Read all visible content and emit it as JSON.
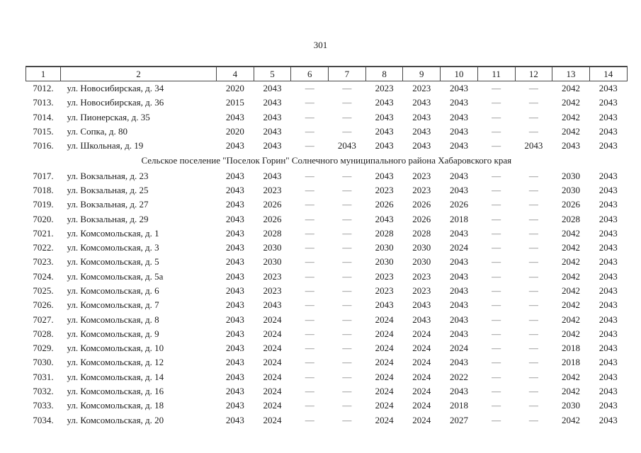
{
  "page_number": "301",
  "table": {
    "columns": [
      "1",
      "2",
      "4",
      "5",
      "6",
      "7",
      "8",
      "9",
      "10",
      "11",
      "12",
      "13",
      "14"
    ],
    "dash": "—",
    "sections": [
      {
        "header": null,
        "rows": [
          {
            "num": "7012.",
            "address": "ул. Новосибирская, д. 34",
            "values": [
              "2020",
              "2043",
              "—",
              "—",
              "2023",
              "2023",
              "2043",
              "—",
              "—",
              "2042",
              "2043"
            ]
          },
          {
            "num": "7013.",
            "address": "ул. Новосибирская, д. 36",
            "values": [
              "2015",
              "2043",
              "—",
              "—",
              "2043",
              "2043",
              "2043",
              "—",
              "—",
              "2042",
              "2043"
            ]
          },
          {
            "num": "7014.",
            "address": "ул. Пионерская, д. 35",
            "values": [
              "2043",
              "2043",
              "—",
              "—",
              "2043",
              "2043",
              "2043",
              "—",
              "—",
              "2042",
              "2043"
            ]
          },
          {
            "num": "7015.",
            "address": "ул. Сопка, д. 80",
            "values": [
              "2020",
              "2043",
              "—",
              "—",
              "2043",
              "2043",
              "2043",
              "—",
              "—",
              "2042",
              "2043"
            ]
          },
          {
            "num": "7016.",
            "address": "ул. Школьная, д. 19",
            "values": [
              "2043",
              "2043",
              "—",
              "2043",
              "2043",
              "2043",
              "2043",
              "—",
              "2043",
              "2043",
              "2043"
            ]
          }
        ]
      },
      {
        "header": "Сельское поселение \"Поселок Горин\" Солнечного муниципального района Хабаровского края",
        "rows": [
          {
            "num": "7017.",
            "address": "ул. Вокзальная, д. 23",
            "values": [
              "2043",
              "2043",
              "—",
              "—",
              "2043",
              "2023",
              "2043",
              "—",
              "—",
              "2030",
              "2043"
            ]
          },
          {
            "num": "7018.",
            "address": "ул. Вокзальная, д. 25",
            "values": [
              "2043",
              "2023",
              "—",
              "—",
              "2023",
              "2023",
              "2043",
              "—",
              "—",
              "2030",
              "2043"
            ]
          },
          {
            "num": "7019.",
            "address": "ул. Вокзальная, д. 27",
            "values": [
              "2043",
              "2026",
              "—",
              "—",
              "2026",
              "2026",
              "2026",
              "—",
              "—",
              "2026",
              "2043"
            ]
          },
          {
            "num": "7020.",
            "address": "ул. Вокзальная, д. 29",
            "values": [
              "2043",
              "2026",
              "—",
              "—",
              "2043",
              "2026",
              "2018",
              "—",
              "—",
              "2028",
              "2043"
            ]
          },
          {
            "num": "7021.",
            "address": "ул. Комсомольская, д. 1",
            "values": [
              "2043",
              "2028",
              "—",
              "—",
              "2028",
              "2028",
              "2043",
              "—",
              "—",
              "2042",
              "2043"
            ]
          },
          {
            "num": "7022.",
            "address": "ул. Комсомольская, д. 3",
            "values": [
              "2043",
              "2030",
              "—",
              "—",
              "2030",
              "2030",
              "2024",
              "—",
              "—",
              "2042",
              "2043"
            ]
          },
          {
            "num": "7023.",
            "address": "ул. Комсомольская, д. 5",
            "values": [
              "2043",
              "2030",
              "—",
              "—",
              "2030",
              "2030",
              "2043",
              "—",
              "—",
              "2042",
              "2043"
            ]
          },
          {
            "num": "7024.",
            "address": "ул. Комсомольская, д. 5а",
            "values": [
              "2043",
              "2023",
              "—",
              "—",
              "2023",
              "2023",
              "2043",
              "—",
              "—",
              "2042",
              "2043"
            ]
          },
          {
            "num": "7025.",
            "address": "ул. Комсомольская, д. 6",
            "values": [
              "2043",
              "2023",
              "—",
              "—",
              "2023",
              "2023",
              "2043",
              "—",
              "—",
              "2042",
              "2043"
            ]
          },
          {
            "num": "7026.",
            "address": "ул. Комсомольская, д. 7",
            "values": [
              "2043",
              "2043",
              "—",
              "—",
              "2043",
              "2043",
              "2043",
              "—",
              "—",
              "2042",
              "2043"
            ]
          },
          {
            "num": "7027.",
            "address": "ул. Комсомольская, д. 8",
            "values": [
              "2043",
              "2024",
              "—",
              "—",
              "2024",
              "2043",
              "2043",
              "—",
              "—",
              "2042",
              "2043"
            ]
          },
          {
            "num": "7028.",
            "address": "ул. Комсомольская, д. 9",
            "values": [
              "2043",
              "2024",
              "—",
              "—",
              "2024",
              "2024",
              "2043",
              "—",
              "—",
              "2042",
              "2043"
            ]
          },
          {
            "num": "7029.",
            "address": "ул. Комсомольская, д. 10",
            "values": [
              "2043",
              "2024",
              "—",
              "—",
              "2024",
              "2024",
              "2024",
              "—",
              "—",
              "2018",
              "2043"
            ]
          },
          {
            "num": "7030.",
            "address": "ул. Комсомольская, д. 12",
            "values": [
              "2043",
              "2024",
              "—",
              "—",
              "2024",
              "2024",
              "2043",
              "—",
              "—",
              "2018",
              "2043"
            ]
          },
          {
            "num": "7031.",
            "address": "ул. Комсомольская, д. 14",
            "values": [
              "2043",
              "2024",
              "—",
              "—",
              "2024",
              "2024",
              "2022",
              "—",
              "—",
              "2042",
              "2043"
            ]
          },
          {
            "num": "7032.",
            "address": "ул. Комсомольская, д. 16",
            "values": [
              "2043",
              "2024",
              "—",
              "—",
              "2024",
              "2024",
              "2043",
              "—",
              "—",
              "2042",
              "2043"
            ]
          },
          {
            "num": "7033.",
            "address": "ул. Комсомольская, д. 18",
            "values": [
              "2043",
              "2024",
              "—",
              "—",
              "2024",
              "2024",
              "2018",
              "—",
              "—",
              "2030",
              "2043"
            ]
          },
          {
            "num": "7034.",
            "address": "ул. Комсомольская, д. 20",
            "values": [
              "2043",
              "2024",
              "—",
              "—",
              "2024",
              "2024",
              "2027",
              "—",
              "—",
              "2042",
              "2043"
            ]
          }
        ]
      }
    ]
  }
}
